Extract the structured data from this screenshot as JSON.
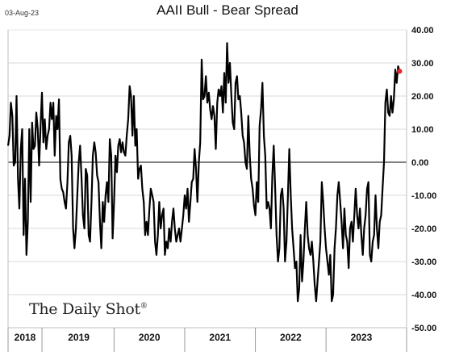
{
  "header": {
    "date": "03-Aug-23",
    "title": "AAII Bull - Bear Spread"
  },
  "watermark": {
    "text": "The Daily Shot",
    "mark": "®"
  },
  "colors": {
    "line": "#000000",
    "marker": "#e8262a",
    "grid": "#d9d9d9",
    "zero": "#000000"
  },
  "chart_data": {
    "type": "line",
    "title": "AAII Bull - Bear Spread",
    "xlabel": "",
    "ylabel": "",
    "ylim": [
      -50,
      40
    ],
    "y_ticks": [
      "40.00",
      "30.00",
      "20.00",
      "10.00",
      "0.00",
      "-10.00",
      "-20.00",
      "-30.00",
      "-40.00",
      "-50.00"
    ],
    "grid": true,
    "x_range": [
      2018.0,
      2023.64
    ],
    "x_ticks": [
      "2018",
      "2019",
      "2020",
      "2021",
      "2022",
      "2023"
    ],
    "x_tick_centers": [
      2018.24,
      2019.0,
      2020.0,
      2021.0,
      2022.0,
      2023.0
    ],
    "series": [
      {
        "values": [
          [
            2018.0,
            5
          ],
          [
            2018.02,
            8
          ],
          [
            2018.04,
            18
          ],
          [
            2018.06,
            14
          ],
          [
            2018.08,
            -1
          ],
          [
            2018.1,
            0
          ],
          [
            2018.12,
            20
          ],
          [
            2018.14,
            -5
          ],
          [
            2018.16,
            -14
          ],
          [
            2018.18,
            4
          ],
          [
            2018.2,
            10
          ],
          [
            2018.22,
            -22
          ],
          [
            2018.24,
            -5
          ],
          [
            2018.26,
            -28
          ],
          [
            2018.28,
            -18
          ],
          [
            2018.3,
            10
          ],
          [
            2018.32,
            -12
          ],
          [
            2018.34,
            12
          ],
          [
            2018.36,
            4
          ],
          [
            2018.38,
            5
          ],
          [
            2018.4,
            15
          ],
          [
            2018.42,
            10
          ],
          [
            2018.44,
            -1
          ],
          [
            2018.46,
            11
          ],
          [
            2018.48,
            21
          ],
          [
            2018.5,
            6
          ],
          [
            2018.52,
            13
          ],
          [
            2018.54,
            4
          ],
          [
            2018.56,
            8
          ],
          [
            2018.58,
            10
          ],
          [
            2018.6,
            18
          ],
          [
            2018.62,
            13
          ],
          [
            2018.64,
            18
          ],
          [
            2018.66,
            2
          ],
          [
            2018.68,
            14
          ],
          [
            2018.7,
            10
          ],
          [
            2018.72,
            19
          ],
          [
            2018.74,
            -5
          ],
          [
            2018.76,
            -8
          ],
          [
            2018.78,
            -9
          ],
          [
            2018.8,
            -12
          ],
          [
            2018.82,
            -14
          ],
          [
            2018.84,
            -6
          ],
          [
            2018.86,
            6
          ],
          [
            2018.88,
            8
          ],
          [
            2018.9,
            2
          ],
          [
            2018.92,
            -20
          ],
          [
            2018.94,
            -26
          ],
          [
            2018.96,
            -20
          ],
          [
            2018.98,
            -10
          ],
          [
            2019.0,
            0
          ],
          [
            2019.02,
            5
          ],
          [
            2019.04,
            -5
          ],
          [
            2019.06,
            -16
          ],
          [
            2019.08,
            -20
          ],
          [
            2019.1,
            -2
          ],
          [
            2019.12,
            -4
          ],
          [
            2019.14,
            -22
          ],
          [
            2019.16,
            -24
          ],
          [
            2019.18,
            -12
          ],
          [
            2019.2,
            2
          ],
          [
            2019.22,
            6
          ],
          [
            2019.24,
            3
          ],
          [
            2019.26,
            -4
          ],
          [
            2019.28,
            -6
          ],
          [
            2019.3,
            -18
          ],
          [
            2019.32,
            -26
          ],
          [
            2019.34,
            -12
          ],
          [
            2019.36,
            -18
          ],
          [
            2019.38,
            -10
          ],
          [
            2019.4,
            -6
          ],
          [
            2019.42,
            -12
          ],
          [
            2019.44,
            7
          ],
          [
            2019.46,
            2
          ],
          [
            2019.48,
            -23
          ],
          [
            2019.5,
            -12
          ],
          [
            2019.52,
            2
          ],
          [
            2019.54,
            -3
          ],
          [
            2019.56,
            5
          ],
          [
            2019.58,
            7
          ],
          [
            2019.6,
            3
          ],
          [
            2019.62,
            6
          ],
          [
            2019.64,
            3
          ],
          [
            2019.66,
            2
          ],
          [
            2019.68,
            8
          ],
          [
            2019.7,
            13
          ],
          [
            2019.72,
            23
          ],
          [
            2019.74,
            20
          ],
          [
            2019.76,
            8
          ],
          [
            2019.78,
            20
          ],
          [
            2019.8,
            5
          ],
          [
            2019.82,
            10
          ],
          [
            2019.84,
            -5
          ],
          [
            2019.86,
            -2
          ],
          [
            2019.88,
            -1
          ],
          [
            2019.9,
            -8
          ],
          [
            2019.92,
            -12
          ],
          [
            2019.94,
            -22
          ],
          [
            2019.96,
            -18
          ],
          [
            2019.98,
            -22
          ],
          [
            2020.0,
            -14
          ],
          [
            2020.02,
            -8
          ],
          [
            2020.04,
            -10
          ],
          [
            2020.06,
            -12
          ],
          [
            2020.08,
            -24
          ],
          [
            2020.1,
            -28
          ],
          [
            2020.12,
            -22
          ],
          [
            2020.14,
            -12
          ],
          [
            2020.16,
            -20
          ],
          [
            2020.18,
            -16
          ],
          [
            2020.2,
            -14
          ],
          [
            2020.22,
            -28
          ],
          [
            2020.24,
            -24
          ],
          [
            2020.26,
            -26
          ],
          [
            2020.28,
            -20
          ],
          [
            2020.3,
            -24
          ],
          [
            2020.32,
            -18
          ],
          [
            2020.34,
            -14
          ],
          [
            2020.36,
            -20
          ],
          [
            2020.38,
            -24
          ],
          [
            2020.4,
            -22
          ],
          [
            2020.42,
            -20
          ],
          [
            2020.44,
            -24
          ],
          [
            2020.46,
            -20
          ],
          [
            2020.48,
            -16
          ],
          [
            2020.5,
            -10
          ],
          [
            2020.52,
            -14
          ],
          [
            2020.54,
            -8
          ],
          [
            2020.56,
            -18
          ],
          [
            2020.58,
            -12
          ],
          [
            2020.6,
            -6
          ],
          [
            2020.62,
            -5
          ],
          [
            2020.64,
            4
          ],
          [
            2020.66,
            -2
          ],
          [
            2020.68,
            -12
          ],
          [
            2020.7,
            0
          ],
          [
            2020.72,
            6
          ],
          [
            2020.74,
            31
          ],
          [
            2020.76,
            19
          ],
          [
            2020.78,
            20
          ],
          [
            2020.8,
            26
          ],
          [
            2020.82,
            18
          ],
          [
            2020.84,
            21
          ],
          [
            2020.86,
            16
          ],
          [
            2020.88,
            13
          ],
          [
            2020.9,
            17
          ],
          [
            2020.92,
            14
          ],
          [
            2020.94,
            4
          ],
          [
            2020.96,
            18
          ],
          [
            2020.98,
            22
          ],
          [
            2021.0,
            20
          ],
          [
            2021.02,
            23
          ],
          [
            2021.04,
            15
          ],
          [
            2021.06,
            27
          ],
          [
            2021.08,
            18
          ],
          [
            2021.1,
            36
          ],
          [
            2021.12,
            24
          ],
          [
            2021.14,
            30
          ],
          [
            2021.16,
            20
          ],
          [
            2021.18,
            12
          ],
          [
            2021.2,
            10
          ],
          [
            2021.22,
            24
          ],
          [
            2021.24,
            26
          ],
          [
            2021.26,
            19
          ],
          [
            2021.28,
            20
          ],
          [
            2021.3,
            15
          ],
          [
            2021.32,
            8
          ],
          [
            2021.34,
            6
          ],
          [
            2021.36,
            0
          ],
          [
            2021.38,
            -2
          ],
          [
            2021.4,
            14
          ],
          [
            2021.42,
            2
          ],
          [
            2021.44,
            -5
          ],
          [
            2021.46,
            -8
          ],
          [
            2021.48,
            -13
          ],
          [
            2021.5,
            -16
          ],
          [
            2021.52,
            -6
          ],
          [
            2021.54,
            -12
          ],
          [
            2021.56,
            11
          ],
          [
            2021.58,
            16
          ],
          [
            2021.6,
            24
          ],
          [
            2021.62,
            8
          ],
          [
            2021.64,
            2
          ],
          [
            2021.66,
            -14
          ],
          [
            2021.68,
            -12
          ],
          [
            2021.7,
            -14
          ],
          [
            2021.72,
            -20
          ],
          [
            2021.74,
            -4
          ],
          [
            2021.76,
            5
          ],
          [
            2021.78,
            -8
          ],
          [
            2021.8,
            -22
          ],
          [
            2021.82,
            -30
          ],
          [
            2021.84,
            -26
          ],
          [
            2021.86,
            -10
          ],
          [
            2021.88,
            -8
          ],
          [
            2021.9,
            -14
          ],
          [
            2021.92,
            -30
          ],
          [
            2021.94,
            -24
          ],
          [
            2021.96,
            -10
          ],
          [
            2021.98,
            4
          ],
          [
            2022.0,
            -10
          ],
          [
            2022.02,
            -20
          ],
          [
            2022.04,
            -26
          ],
          [
            2022.06,
            -32
          ],
          [
            2022.08,
            -30
          ],
          [
            2022.1,
            -42
          ],
          [
            2022.12,
            -38
          ],
          [
            2022.14,
            -22
          ],
          [
            2022.16,
            -36
          ],
          [
            2022.18,
            -30
          ],
          [
            2022.2,
            -20
          ],
          [
            2022.22,
            -12
          ],
          [
            2022.24,
            -22
          ],
          [
            2022.26,
            -26
          ],
          [
            2022.28,
            -28
          ],
          [
            2022.3,
            -24
          ],
          [
            2022.32,
            -30
          ],
          [
            2022.34,
            -37
          ],
          [
            2022.36,
            -42
          ],
          [
            2022.38,
            -36
          ],
          [
            2022.4,
            -30
          ],
          [
            2022.42,
            -24
          ],
          [
            2022.44,
            -6
          ],
          [
            2022.46,
            -12
          ],
          [
            2022.48,
            -20
          ],
          [
            2022.5,
            -26
          ],
          [
            2022.52,
            -30
          ],
          [
            2022.54,
            -34
          ],
          [
            2022.56,
            -28
          ],
          [
            2022.58,
            -42
          ],
          [
            2022.6,
            -40
          ],
          [
            2022.62,
            -26
          ],
          [
            2022.64,
            -20
          ],
          [
            2022.66,
            -10
          ],
          [
            2022.68,
            -6
          ],
          [
            2022.7,
            -12
          ],
          [
            2022.72,
            -18
          ],
          [
            2022.74,
            -26
          ],
          [
            2022.76,
            -14
          ],
          [
            2022.78,
            -22
          ],
          [
            2022.8,
            -24
          ],
          [
            2022.82,
            -32
          ],
          [
            2022.84,
            -20
          ],
          [
            2022.86,
            -18
          ],
          [
            2022.88,
            -24
          ],
          [
            2022.9,
            -16
          ],
          [
            2022.92,
            -8
          ],
          [
            2022.94,
            -16
          ],
          [
            2022.96,
            -20
          ],
          [
            2022.98,
            -14
          ],
          [
            2023.0,
            -22
          ],
          [
            2023.02,
            -28
          ],
          [
            2023.04,
            -20
          ],
          [
            2023.06,
            -16
          ],
          [
            2023.08,
            -8
          ],
          [
            2023.1,
            -6
          ],
          [
            2023.12,
            -28
          ],
          [
            2023.14,
            -30
          ],
          [
            2023.16,
            -24
          ],
          [
            2023.18,
            -22
          ],
          [
            2023.2,
            -10
          ],
          [
            2023.22,
            -20
          ],
          [
            2023.24,
            -26
          ],
          [
            2023.26,
            -18
          ],
          [
            2023.28,
            -16
          ],
          [
            2023.3,
            -8
          ],
          [
            2023.32,
            0
          ],
          [
            2023.34,
            18
          ],
          [
            2023.36,
            22
          ],
          [
            2023.38,
            15
          ],
          [
            2023.4,
            14
          ],
          [
            2023.42,
            20
          ],
          [
            2023.44,
            15
          ],
          [
            2023.46,
            19
          ],
          [
            2023.48,
            28
          ],
          [
            2023.5,
            24
          ],
          [
            2023.52,
            29
          ],
          [
            2023.54,
            27.5
          ]
        ]
      }
    ]
  }
}
